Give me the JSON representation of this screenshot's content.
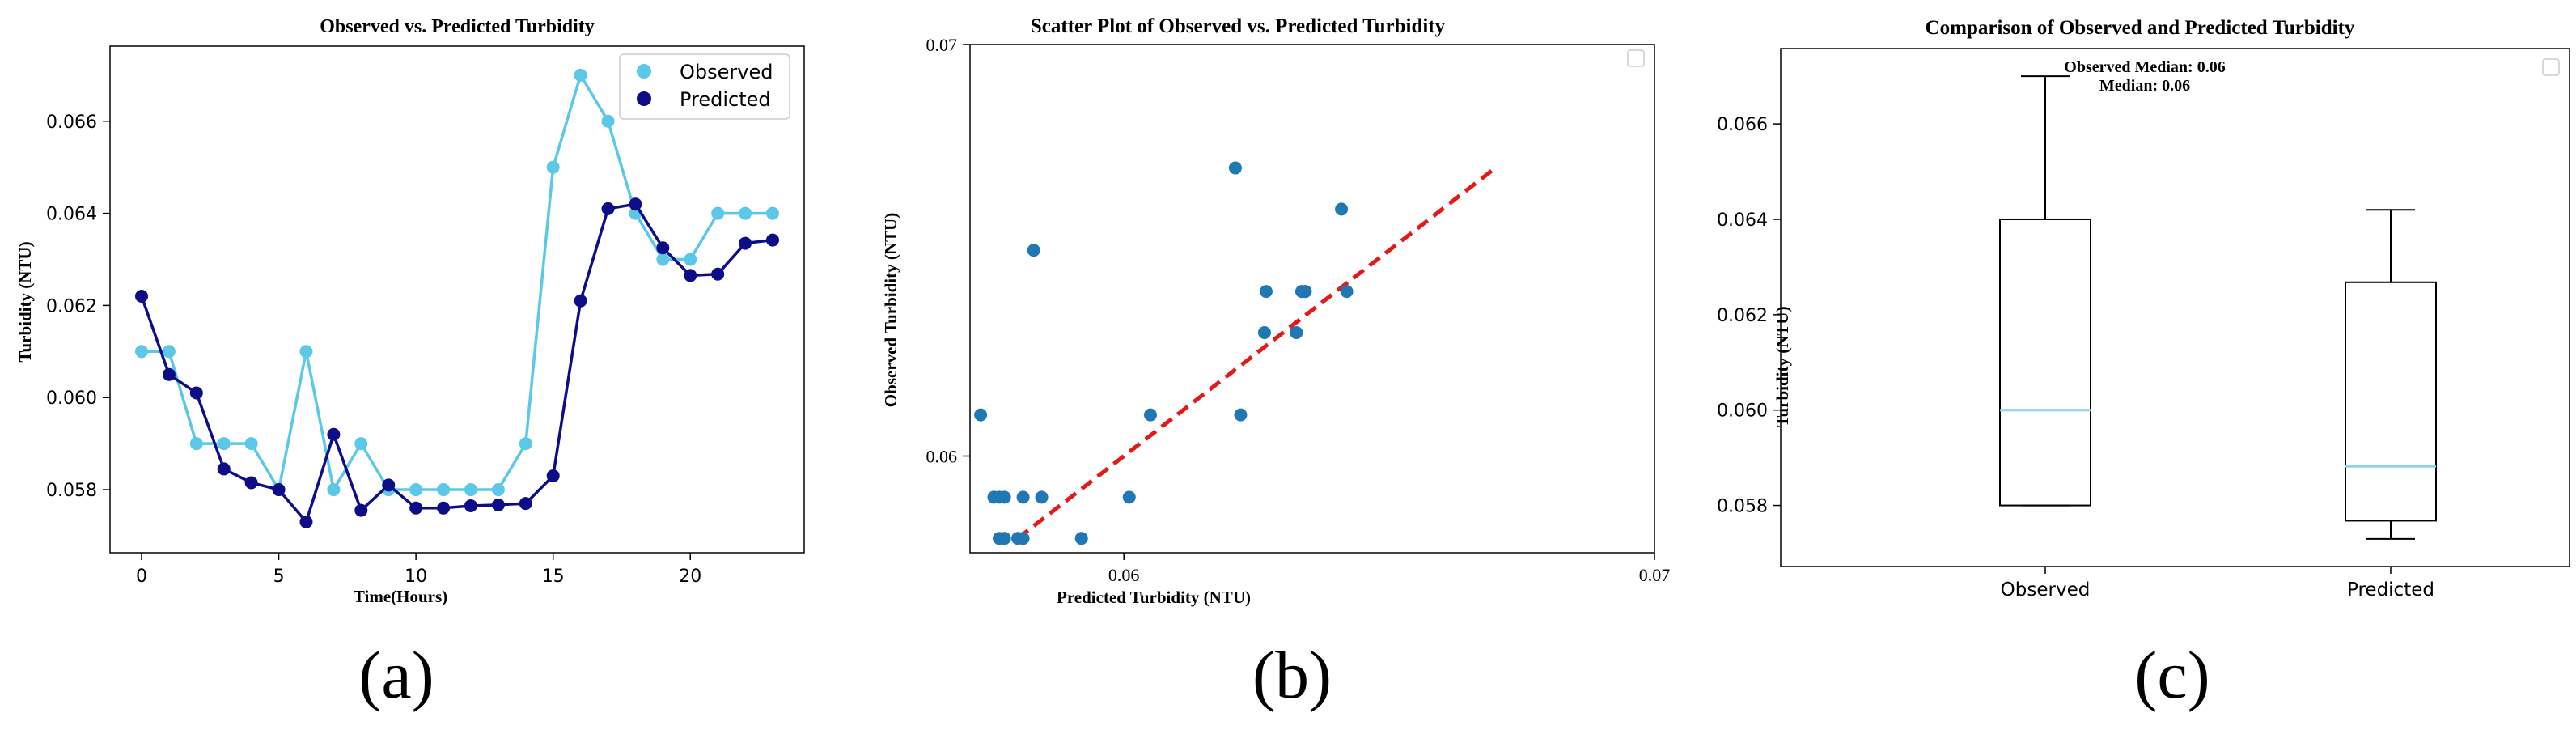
{
  "chart_data": [
    {
      "type": "line",
      "title": "Observed vs. Predicted Turbidity",
      "xlabel": "Time(Hours)",
      "ylabel": "Turbidity (NTU)",
      "xlim": [
        -1.15,
        24.15
      ],
      "ylim": [
        0.05663,
        0.06763
      ],
      "xticks": [
        0,
        5,
        10,
        15,
        20
      ],
      "yticks": [
        0.058,
        0.06,
        0.062,
        0.064,
        0.066
      ],
      "ytick_labels": [
        "0.058",
        "0.060",
        "0.062",
        "0.064",
        "0.066"
      ],
      "grid": false,
      "legend_position": "top-right",
      "x": [
        0,
        1,
        2,
        3,
        4,
        5,
        6,
        7,
        8,
        9,
        10,
        11,
        12,
        13,
        14,
        15,
        16,
        17,
        18,
        19,
        20,
        21,
        22,
        23
      ],
      "series": [
        {
          "name": "Observed",
          "color": "#5BC8E8",
          "values": [
            0.061,
            0.061,
            0.059,
            0.059,
            0.059,
            0.058,
            0.061,
            0.058,
            0.059,
            0.058,
            0.058,
            0.058,
            0.058,
            0.058,
            0.059,
            0.065,
            0.067,
            0.066,
            0.064,
            0.063,
            0.063,
            0.064,
            0.064,
            0.064
          ]
        },
        {
          "name": "Predicted",
          "color": "#0D0D87",
          "values": [
            0.0622,
            0.0605,
            0.0601,
            0.05845,
            0.05815,
            0.058,
            0.0573,
            0.0592,
            0.05755,
            0.0581,
            0.0576,
            0.0576,
            0.05765,
            0.05767,
            0.0577,
            0.0583,
            0.0621,
            0.0641,
            0.0642,
            0.06325,
            0.06265,
            0.06268,
            0.06335,
            0.06342
          ]
        }
      ],
      "panel_label": "(a)"
    },
    {
      "type": "scatter",
      "title": "Scatter Plot of Observed vs. Predicted Turbidity",
      "xlabel": "Predicted Turbidity (NTU)",
      "ylabel": "Observed Turbidity (NTU)",
      "xlim": [
        0.0571,
        0.07
      ],
      "ylim": [
        0.05765,
        0.07
      ],
      "xticks": [
        0.06,
        0.07
      ],
      "xtick_labels": [
        "0.06",
        "0.07"
      ],
      "yticks": [
        0.06,
        0.07
      ],
      "ytick_labels": [
        "0.06",
        "0.07"
      ],
      "grid": false,
      "legend_position": "top-right",
      "legend_entries": [
        ""
      ],
      "point_color": "#1F77B4",
      "points": [
        {
          "x": 0.0573,
          "y": 0.061
        },
        {
          "x": 0.05755,
          "y": 0.059
        },
        {
          "x": 0.05765,
          "y": 0.059
        },
        {
          "x": 0.05775,
          "y": 0.059
        },
        {
          "x": 0.05765,
          "y": 0.058
        },
        {
          "x": 0.05775,
          "y": 0.058
        },
        {
          "x": 0.058,
          "y": 0.058
        },
        {
          "x": 0.0581,
          "y": 0.058
        },
        {
          "x": 0.0581,
          "y": 0.059
        },
        {
          "x": 0.0583,
          "y": 0.065
        },
        {
          "x": 0.05845,
          "y": 0.059
        },
        {
          "x": 0.0592,
          "y": 0.058
        },
        {
          "x": 0.0601,
          "y": 0.059
        },
        {
          "x": 0.0605,
          "y": 0.061
        },
        {
          "x": 0.0621,
          "y": 0.067
        },
        {
          "x": 0.0622,
          "y": 0.061
        },
        {
          "x": 0.06265,
          "y": 0.063
        },
        {
          "x": 0.06268,
          "y": 0.064
        },
        {
          "x": 0.06325,
          "y": 0.063
        },
        {
          "x": 0.06335,
          "y": 0.064
        },
        {
          "x": 0.06342,
          "y": 0.064
        },
        {
          "x": 0.0641,
          "y": 0.066
        },
        {
          "x": 0.0642,
          "y": 0.064
        }
      ],
      "reference_line": {
        "from": [
          0.058,
          0.058
        ],
        "to": [
          0.067,
          0.067
        ],
        "style": "dashed",
        "color": "#E31A1C"
      },
      "panel_label": "(b)"
    },
    {
      "type": "box",
      "title": "Comparison of Observed and Predicted Turbidity",
      "xlabel": "",
      "ylabel": "Turbidity (NTU)",
      "ylim": [
        0.05672,
        0.06758
      ],
      "yticks": [
        0.058,
        0.06,
        0.062,
        0.064,
        0.066
      ],
      "ytick_labels": [
        "0.058",
        "0.060",
        "0.062",
        "0.064",
        "0.066"
      ],
      "categories": [
        "Observed",
        "Predicted"
      ],
      "boxes": [
        {
          "name": "Observed",
          "min": 0.058,
          "q1": 0.058,
          "median": 0.06,
          "q3": 0.064,
          "max": 0.067
        },
        {
          "name": "Predicted",
          "min": 0.0573,
          "q1": 0.05768,
          "median": 0.05882,
          "q3": 0.06268,
          "max": 0.0642
        }
      ],
      "median_color": "#8FD3E6",
      "annotations": [
        "Observed Median: 0.06",
        "Median: 0.06"
      ],
      "legend_position": "top-right",
      "legend_entries": [
        ""
      ],
      "panel_label": "(c)"
    }
  ]
}
